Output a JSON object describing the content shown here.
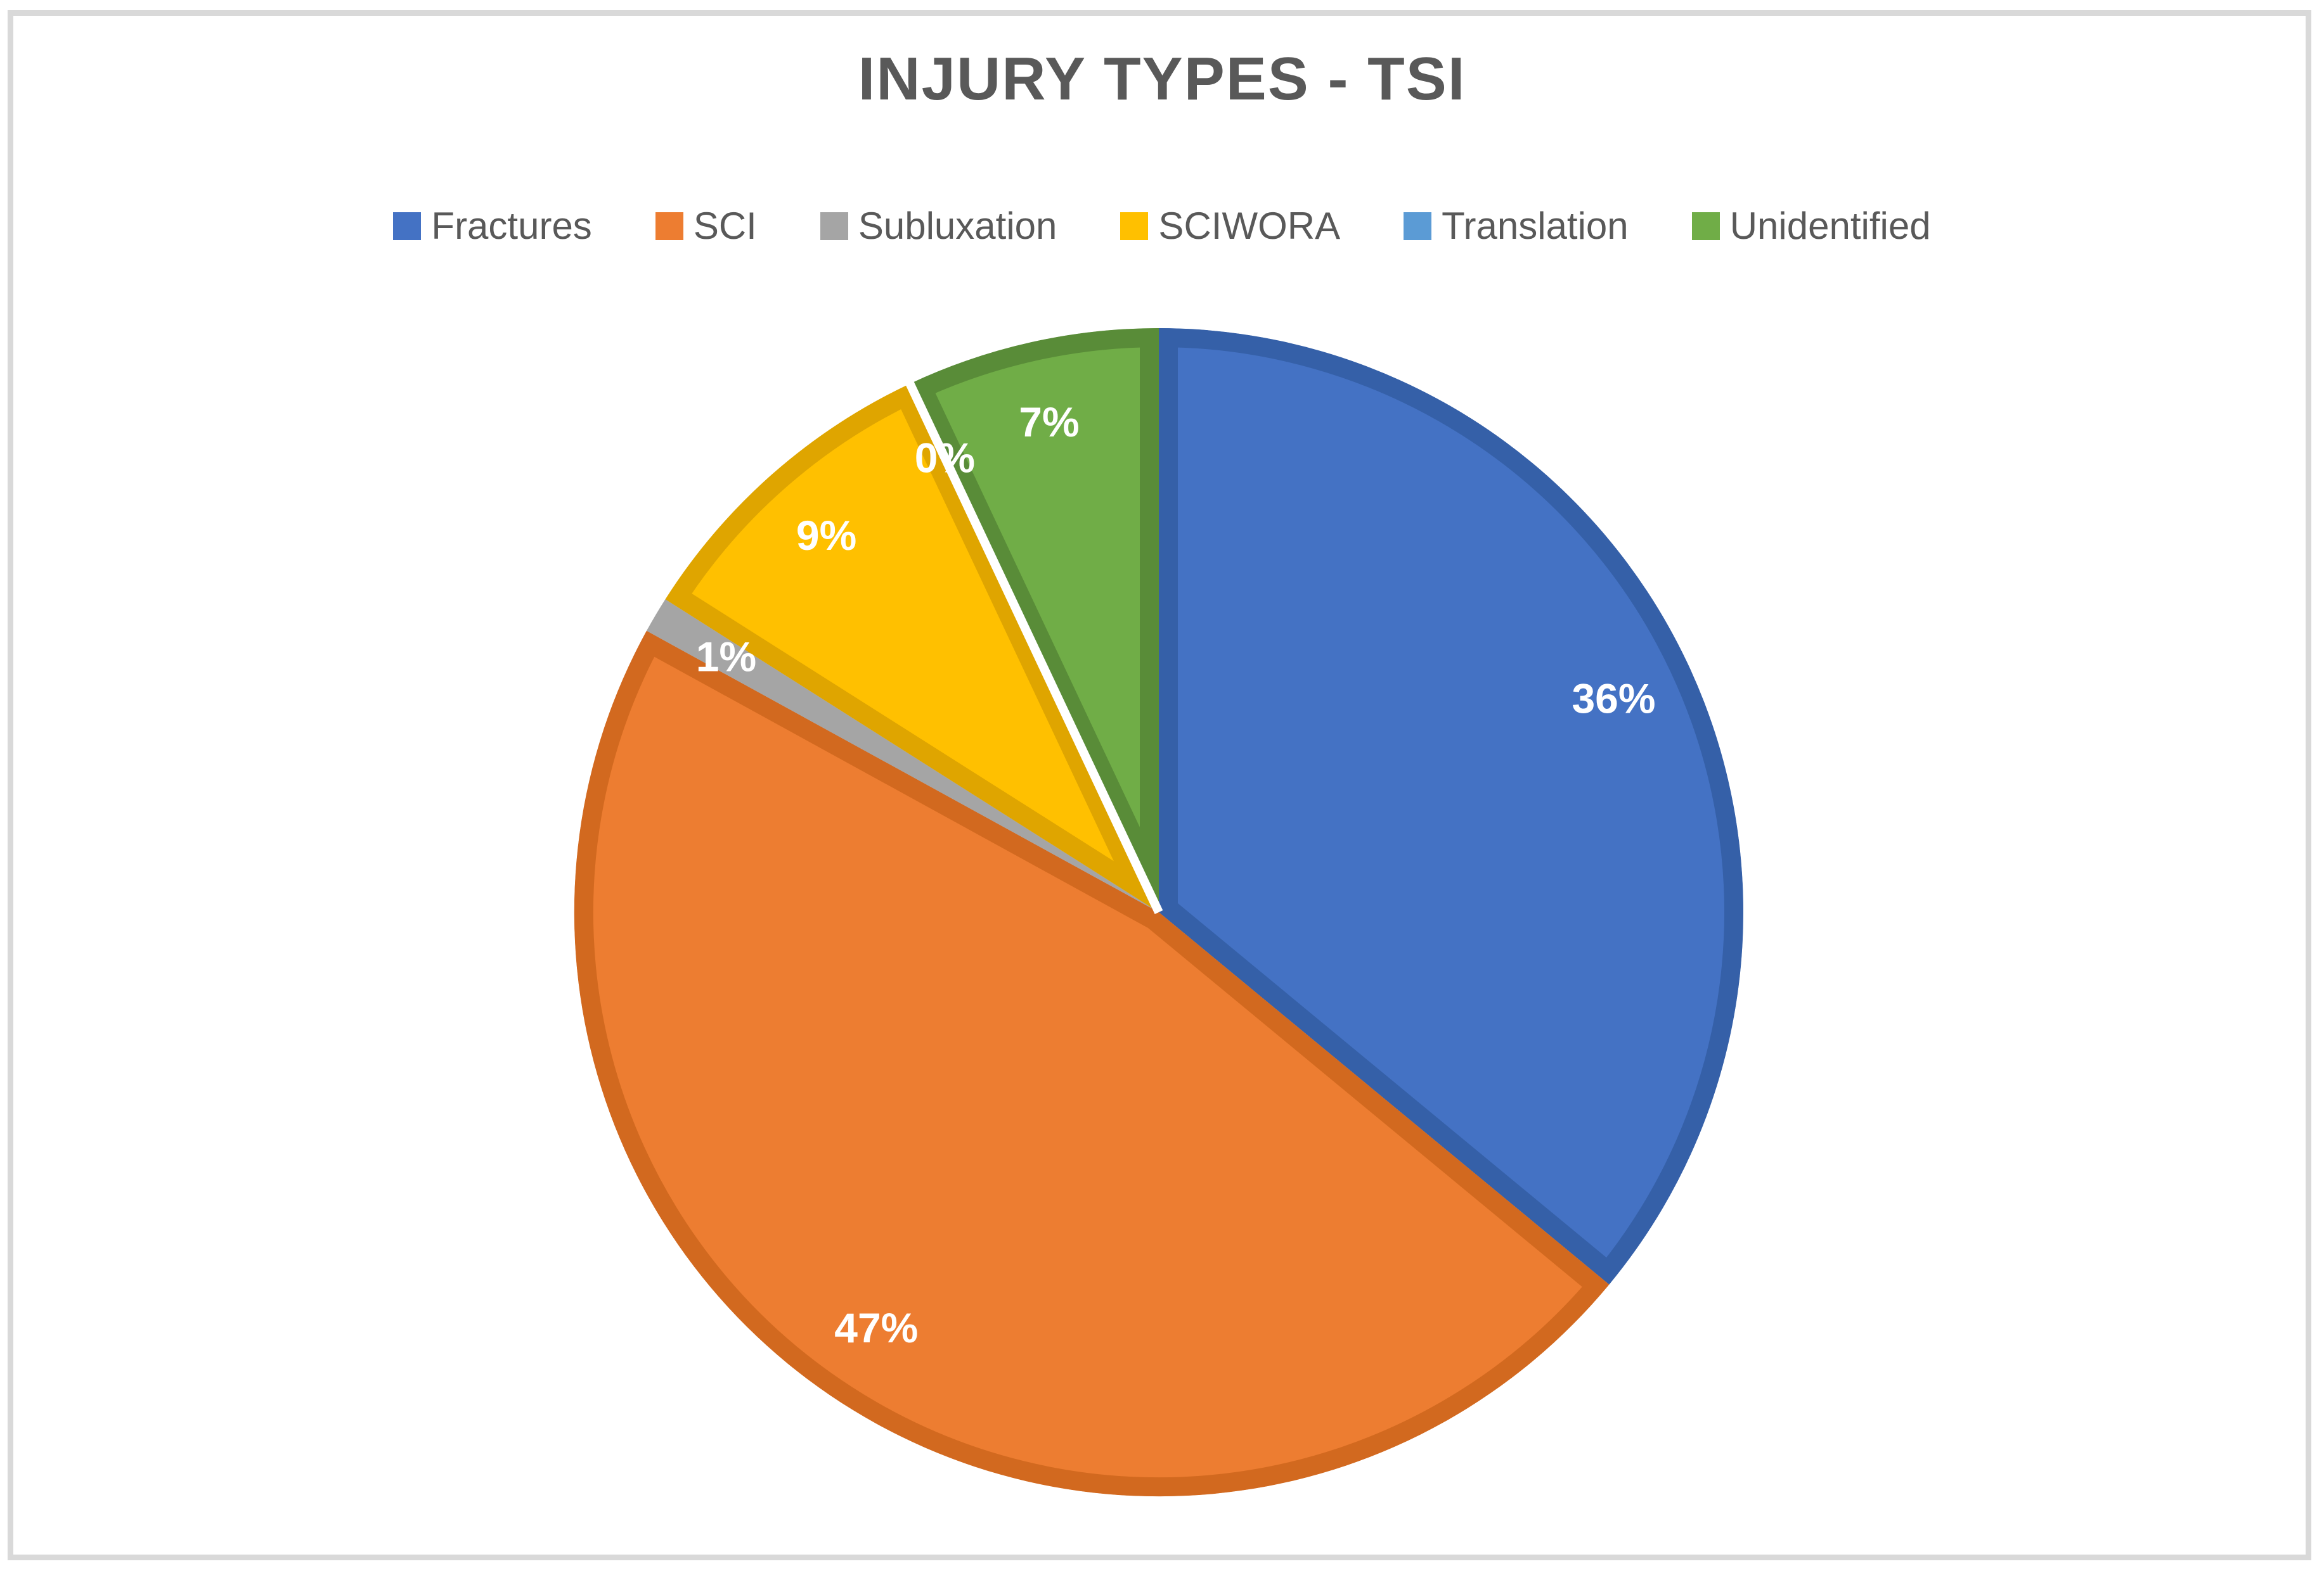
{
  "chart_data": {
    "type": "pie",
    "title": "INJURY TYPES - TSI",
    "categories": [
      "Fractures",
      "SCI",
      "Subluxation",
      "SCIWORA",
      "Translation",
      "Unidentified"
    ],
    "values": [
      36,
      47,
      1,
      9,
      0,
      7
    ],
    "data_labels": [
      "36%",
      "47%",
      "1%",
      "9%",
      "0%",
      "7%"
    ],
    "unit": "percent",
    "colors": [
      "#4472C4",
      "#ED7D31",
      "#A5A5A5",
      "#FFC000",
      "#5B9BD5",
      "#70AD47"
    ],
    "border_colors": [
      "#3560A8",
      "#D2691F",
      "#A5A5A5",
      "#DFA500",
      "#4A86C8",
      "#598C38"
    ],
    "label_color": "#FFFFFF",
    "start_angle_deg": 0,
    "direction": "clockwise",
    "legend_position": "top",
    "title_color": "#595959",
    "legend_text_color": "#595959",
    "background_color": "#FFFFFF",
    "frame_border_color": "#D9D9D9",
    "zero_slice_separator_color": "#FFFFFF"
  }
}
